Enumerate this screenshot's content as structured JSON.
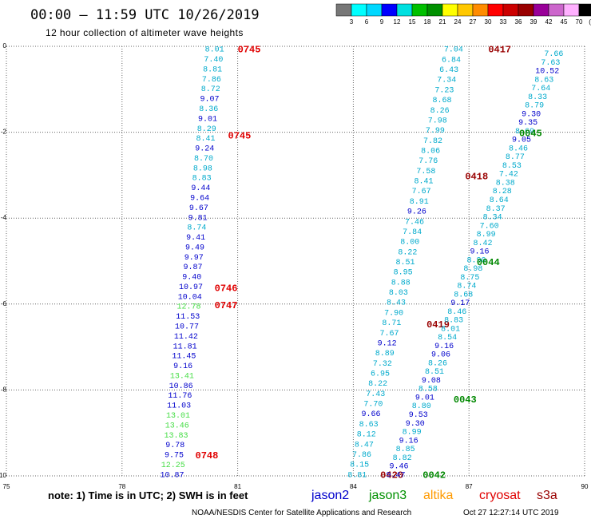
{
  "title": "00:00 – 11:59 UTC 10/26/2019",
  "subtitle": "12 hour collection of altimeter wave heights",
  "colorbar": {
    "labels": [
      "3",
      "6",
      "9",
      "12",
      "15",
      "18",
      "21",
      "24",
      "27",
      "30",
      "33",
      "36",
      "39",
      "42",
      "45",
      "70"
    ],
    "unit": "(ft)",
    "colors": [
      "#777777",
      "#00ffff",
      "#00d8ff",
      "#0000ff",
      "#00e0e0",
      "#00c000",
      "#009000",
      "#ffff00",
      "#ffc800",
      "#ff8c00",
      "#ff0000",
      "#cc0000",
      "#990000",
      "#990099",
      "#cc66cc",
      "#ffb0ff",
      "#000000"
    ]
  },
  "note": "note:  1) Time is in UTC;  2) SWH is in feet",
  "satellites": [
    {
      "name": "jason2",
      "color": "#0000cc"
    },
    {
      "name": "jason3",
      "color": "#009000"
    },
    {
      "name": "altika",
      "color": "#ff9a00"
    },
    {
      "name": "cryosat",
      "color": "#e00000"
    },
    {
      "name": "s3a",
      "color": "#990000"
    }
  ],
  "footer_left": "NOAA/NESDIS Center for Satellite Applications and Research",
  "footer_right": "Oct 27 12:27:14 UTC 2019",
  "chart_data": {
    "type": "scatter",
    "title": "00:00 – 11:59 UTC 10/26/2019",
    "subtitle": "12 hour collection of altimeter wave heights",
    "xlabel": "",
    "ylabel": "",
    "xlim": [
      75,
      90
    ],
    "ylim": [
      -10,
      0
    ],
    "xticks": [
      75,
      78,
      81,
      84,
      87,
      90
    ],
    "yticks": [
      0,
      -2,
      -4,
      -6,
      -8,
      -10
    ],
    "grid": true,
    "tracks": [
      {
        "x0": 80.4,
        "x1": 79.3,
        "y0": -0.05,
        "y1": -9.95,
        "values": [
          [
            "8.01",
            "#00aacc"
          ],
          [
            "7.40",
            "#00aacc"
          ],
          [
            "8.81",
            "#00aacc"
          ],
          [
            "7.86",
            "#00aacc"
          ],
          [
            "8.72",
            "#00aacc"
          ],
          [
            "9.07",
            "#0000cc"
          ],
          [
            "8.36",
            "#00aacc"
          ],
          [
            "9.01",
            "#0000cc"
          ],
          [
            "8.29",
            "#00aacc"
          ],
          [
            "8.41",
            "#00aacc"
          ],
          [
            "9.24",
            "#0000cc"
          ],
          [
            "8.70",
            "#00aacc"
          ],
          [
            "8.98",
            "#00aacc"
          ],
          [
            "8.83",
            "#00aacc"
          ],
          [
            "9.44",
            "#0000cc"
          ],
          [
            "9.64",
            "#0000cc"
          ],
          [
            "9.67",
            "#0000cc"
          ],
          [
            "9.81",
            "#0000cc"
          ],
          [
            "8.74",
            "#00aacc"
          ],
          [
            "9.41",
            "#0000cc"
          ],
          [
            "9.49",
            "#0000cc"
          ],
          [
            "9.97",
            "#0000cc"
          ],
          [
            "9.87",
            "#0000cc"
          ],
          [
            "9.40",
            "#0000cc"
          ],
          [
            "10.97",
            "#0000cc"
          ],
          [
            "10.04",
            "#0000cc"
          ],
          [
            "12.78",
            "#44dd44"
          ],
          [
            "11.53",
            "#0000cc"
          ],
          [
            "10.77",
            "#0000cc"
          ],
          [
            "11.42",
            "#0000cc"
          ],
          [
            "11.81",
            "#0000cc"
          ],
          [
            "11.45",
            "#0000cc"
          ],
          [
            "9.16",
            "#0000cc"
          ],
          [
            "13.41",
            "#44dd44"
          ],
          [
            "10.86",
            "#0000cc"
          ],
          [
            "11.76",
            "#0000cc"
          ],
          [
            "11.03",
            "#0000cc"
          ],
          [
            "13.01",
            "#44dd44"
          ],
          [
            "13.46",
            "#44dd44"
          ],
          [
            "13.83",
            "#44dd44"
          ],
          [
            "9.78",
            "#0000cc"
          ],
          [
            "9.75",
            "#0000cc"
          ],
          [
            "12.25",
            "#44dd44"
          ],
          [
            "10.87",
            "#0000cc"
          ]
        ],
        "tags": [
          {
            "text": "0745",
            "x": 81.0,
            "y": -0.05,
            "color": "#e00000"
          },
          {
            "text": "0745",
            "x": 80.75,
            "y": -2.05,
            "color": "#e00000"
          },
          {
            "text": "0746",
            "x": 80.4,
            "y": -5.6,
            "color": "#e00000"
          },
          {
            "text": "0747",
            "x": 80.4,
            "y": -6.0,
            "color": "#e00000"
          },
          {
            "text": "0748",
            "x": 79.9,
            "y": -9.5,
            "color": "#e00000"
          }
        ]
      },
      {
        "x0": 86.6,
        "x1": 84.1,
        "y0": -0.05,
        "y1": -9.95,
        "values": [
          [
            "7.04",
            "#00aacc"
          ],
          [
            "6.84",
            "#00aacc"
          ],
          [
            "6.43",
            "#00aacc"
          ],
          [
            "7.34",
            "#00aacc"
          ],
          [
            "7.23",
            "#00aacc"
          ],
          [
            "8.68",
            "#00aacc"
          ],
          [
            "8.26",
            "#00aacc"
          ],
          [
            "7.98",
            "#00aacc"
          ],
          [
            "7.99",
            "#00aacc"
          ],
          [
            "7.82",
            "#00aacc"
          ],
          [
            "8.06",
            "#00aacc"
          ],
          [
            "7.76",
            "#00aacc"
          ],
          [
            "7.58",
            "#00aacc"
          ],
          [
            "8.41",
            "#00aacc"
          ],
          [
            "7.67",
            "#00aacc"
          ],
          [
            "8.91",
            "#00aacc"
          ],
          [
            "9.26",
            "#0000cc"
          ],
          [
            "7.46",
            "#00aacc"
          ],
          [
            "7.84",
            "#00aacc"
          ],
          [
            "8.00",
            "#00aacc"
          ],
          [
            "8.22",
            "#00aacc"
          ],
          [
            "8.51",
            "#00aacc"
          ],
          [
            "8.95",
            "#00aacc"
          ],
          [
            "8.88",
            "#00aacc"
          ],
          [
            "8.03",
            "#00aacc"
          ],
          [
            "8.43",
            "#00aacc"
          ],
          [
            "7.90",
            "#00aacc"
          ],
          [
            "8.71",
            "#00aacc"
          ],
          [
            "7.67",
            "#00aacc"
          ],
          [
            "9.12",
            "#0000cc"
          ],
          [
            "8.89",
            "#00aacc"
          ],
          [
            "7.32",
            "#00aacc"
          ],
          [
            "6.95",
            "#00aacc"
          ],
          [
            "8.22",
            "#00aacc"
          ],
          [
            "7.43",
            "#00aacc"
          ],
          [
            "7.70",
            "#00aacc"
          ],
          [
            "9.66",
            "#0000cc"
          ],
          [
            "8.63",
            "#00aacc"
          ],
          [
            "8.12",
            "#00aacc"
          ],
          [
            "8.47",
            "#00aacc"
          ],
          [
            "7.86",
            "#00aacc"
          ],
          [
            "8.15",
            "#00aacc"
          ],
          [
            "8.81",
            "#00aacc"
          ]
        ],
        "tags": [
          {
            "text": "0417",
            "x": 87.5,
            "y": -0.05,
            "color": "#990000"
          },
          {
            "text": "0418",
            "x": 86.9,
            "y": -3.0,
            "color": "#990000"
          },
          {
            "text": "0419",
            "x": 85.9,
            "y": -6.45,
            "color": "#990000"
          },
          {
            "text": "0420",
            "x": 84.7,
            "y": -9.95,
            "color": "#990000"
          }
        ]
      },
      {
        "x0": 89.2,
        "x1": 85.1,
        "y0": -0.15,
        "y1": -9.95,
        "values": [
          [
            "7.66",
            "#00aacc"
          ],
          [
            "7.63",
            "#00aacc"
          ],
          [
            "10.52",
            "#0000cc"
          ],
          [
            "8.63",
            "#00aacc"
          ],
          [
            "7.64",
            "#00aacc"
          ],
          [
            "8.33",
            "#00aacc"
          ],
          [
            "8.79",
            "#00aacc"
          ],
          [
            "9.30",
            "#0000cc"
          ],
          [
            "9.35",
            "#0000cc"
          ],
          [
            "8.69",
            "#00aacc"
          ],
          [
            "9.05",
            "#0000cc"
          ],
          [
            "8.46",
            "#00aacc"
          ],
          [
            "8.77",
            "#00aacc"
          ],
          [
            "8.53",
            "#00aacc"
          ],
          [
            "7.42",
            "#00aacc"
          ],
          [
            "8.38",
            "#00aacc"
          ],
          [
            "8.28",
            "#00aacc"
          ],
          [
            "8.64",
            "#00aacc"
          ],
          [
            "8.37",
            "#00aacc"
          ],
          [
            "8.34",
            "#00aacc"
          ],
          [
            "7.60",
            "#00aacc"
          ],
          [
            "8.99",
            "#00aacc"
          ],
          [
            "8.42",
            "#00aacc"
          ],
          [
            "9.16",
            "#0000cc"
          ],
          [
            "8.90",
            "#00aacc"
          ],
          [
            "8.98",
            "#00aacc"
          ],
          [
            "8.75",
            "#00aacc"
          ],
          [
            "8.74",
            "#00aacc"
          ],
          [
            "8.68",
            "#00aacc"
          ],
          [
            "9.17",
            "#0000cc"
          ],
          [
            "8.46",
            "#00aacc"
          ],
          [
            "8.83",
            "#00aacc"
          ],
          [
            "8.01",
            "#00aacc"
          ],
          [
            "8.54",
            "#00aacc"
          ],
          [
            "9.16",
            "#0000cc"
          ],
          [
            "9.06",
            "#0000cc"
          ],
          [
            "8.26",
            "#00aacc"
          ],
          [
            "8.51",
            "#00aacc"
          ],
          [
            "9.08",
            "#0000cc"
          ],
          [
            "8.58",
            "#00aacc"
          ],
          [
            "9.01",
            "#0000cc"
          ],
          [
            "8.80",
            "#00aacc"
          ],
          [
            "9.53",
            "#0000cc"
          ],
          [
            "9.30",
            "#0000cc"
          ],
          [
            "8.99",
            "#00aacc"
          ],
          [
            "9.16",
            "#0000cc"
          ],
          [
            "8.85",
            "#00aacc"
          ],
          [
            "8.82",
            "#00aacc"
          ],
          [
            "9.46",
            "#0000cc"
          ],
          [
            "9.47",
            "#0000cc"
          ]
        ],
        "tags": [
          {
            "text": "0045",
            "x": 88.3,
            "y": -2.0,
            "color": "#008800"
          },
          {
            "text": "0044",
            "x": 87.2,
            "y": -5.0,
            "color": "#008800"
          },
          {
            "text": "0043",
            "x": 86.6,
            "y": -8.2,
            "color": "#008800"
          },
          {
            "text": "0042",
            "x": 85.8,
            "y": -9.95,
            "color": "#008800"
          }
        ]
      }
    ]
  }
}
